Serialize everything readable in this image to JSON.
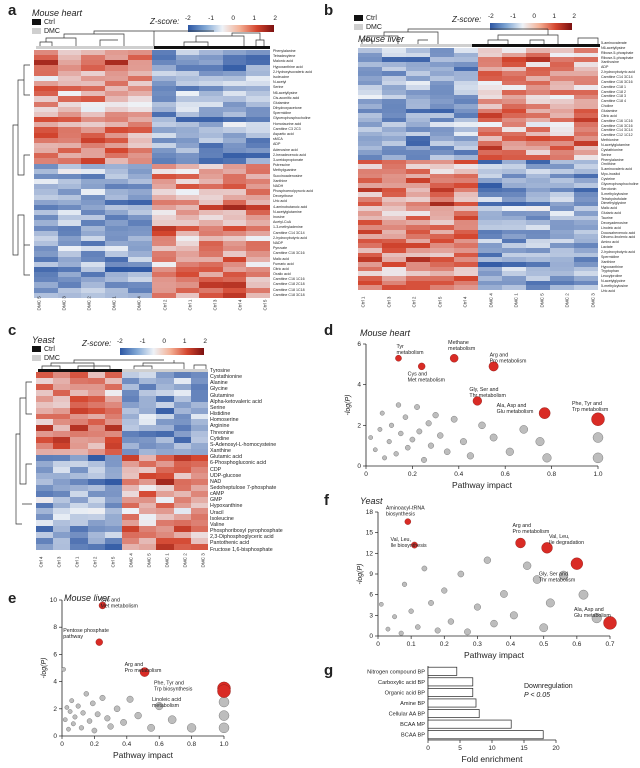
{
  "panels": {
    "a": {
      "label": "a",
      "title": "Mouse heart"
    },
    "b": {
      "label": "b",
      "title": "Mouse liver"
    },
    "c": {
      "label": "c",
      "title": "Yeast"
    },
    "d": {
      "label": "d",
      "title": "Mouse heart"
    },
    "e": {
      "label": "e",
      "title": "Mouse liver"
    },
    "f": {
      "label": "f",
      "title": "Yeast"
    },
    "g": {
      "label": "g"
    }
  },
  "legend": {
    "ctrl": "Ctrl",
    "dmc": "DMC",
    "ctrl_color": "#111111",
    "dmc_color": "#cfcfcf"
  },
  "zscore": {
    "label": "Z-score:",
    "ticks": [
      "-2",
      "-1",
      "0",
      "1",
      "2"
    ]
  },
  "heatmap_colors": {
    "low": "#2c56a3",
    "mid": "#eef2f7",
    "high": "#d4462f",
    "max": "#7b1010"
  },
  "heatmap_a": {
    "columns": [
      "DMC 5",
      "DMC 3",
      "DMC 2",
      "DMC 1",
      "DMC 4",
      "Ctrl 2",
      "Ctrl 1",
      "Ctrl 3",
      "Ctrl 4",
      "Ctrl 5"
    ],
    "rows": [
      "Phenylalanine",
      "Tetradecylene",
      "Malonic acid",
      "Hypoxanthine acid",
      "2-Hydroxyisovaleric acid",
      "Isoleucine",
      "N-acetyl",
      "Serine",
      "N6-acetyllysine",
      "Cis-aconitic acid",
      "Glutamine",
      "Dihydroxyacetone",
      "Spermidine",
      "Glycerophosphocholine",
      "Homotaurine acid",
      "Carnitine C3 2C3",
      "Aspartic acid",
      "sMCA",
      "ADP",
      "Adenosine acid",
      "2-hexadecenoic acid",
      "3-ureidopropionate",
      "Putrescine",
      "Methylguanine",
      "Succinoadenosine",
      "Xanthine",
      "NADH",
      "Phosphoenolpyruvic acid",
      "Deoxyribose",
      "Uric acid",
      "4-aminobutanoic acid",
      "N-acetylglutamine",
      "Inosine",
      "Acetyl-CoA",
      "1-3-methyladenine",
      "Carnitine C14 3C14",
      "2-hydroxybutyric acid",
      "NADP",
      "Pyruvate",
      "Carnitine C16 3C16",
      "Malic acid",
      "Fumaric acid",
      "Citric acid",
      "Oxalic acid",
      "Carnitine C16 1C16",
      "Carnitine C18 2C18",
      "Carnitine C18 1C18",
      "Carnitine C18 3C18"
    ]
  },
  "heatmap_b": {
    "columns": [
      "Ctrl 1",
      "Ctrl 3",
      "Ctrl 2",
      "Ctrl 5",
      "Ctrl 4",
      "DMC 4",
      "DMC 1",
      "DMC 5",
      "DMC 2",
      "DMC 3"
    ],
    "rows": [
      "5-aminovalerate",
      "N6-acetyllysine",
      "Ribose-5-phosphate",
      "Ribose-5-phosphate",
      "Xanthosine",
      "ADP",
      "2-hydroxybutyric acid",
      "Carnitine C14 3C14",
      "Carnitine C16 3C16",
      "Carnitine C18 1",
      "Carnitine C18 2",
      "Carnitine C18 3",
      "Carnitine C18 4",
      "Choline",
      "Glutamine",
      "Citric acid",
      "Carnitine C16 1C16",
      "Carnitine C16 3C16",
      "Carnitine C14 3C14",
      "Carnitine C12 1C12",
      "Methionine",
      "N-acetylglutamine",
      "Cystathionine",
      "Serine",
      "Phenylalanine",
      "Ornithine",
      "5-aminovaleric acid",
      "Myo-inositol",
      "Cysteine",
      "Glycerophosphocholine",
      "Serotonin",
      "5-methylcytosine",
      "Tetrahydrofolate",
      "Dimethylglycine",
      "Malic acid",
      "Glutaric acid",
      "Taurine",
      "Deoxyadenosine",
      "Linoleic acid",
      "Docosahexenoic acid",
      "Dihomo-linolenic acid",
      "Amino acid",
      "Lactate",
      "2-hydroxybutyric acid",
      "Spermidine",
      "Xanthine",
      "Hypoxanthine",
      "Tryptophan",
      "Leucylproline",
      "N-acetylglycine",
      "5-methylcytosine",
      "Uric acid"
    ]
  },
  "heatmap_c": {
    "columns": [
      "Ctrl 4",
      "Ctrl 3",
      "Ctrl 1",
      "Ctrl 2",
      "Ctrl 5",
      "DMC 4",
      "DMC 5",
      "DMC 1",
      "DMC 2",
      "DMC 3"
    ],
    "rows": [
      "Tyrosine",
      "Cystathionine",
      "Alanine",
      "Glycine",
      "Glutamine",
      "Alpha-ketovaleric acid",
      "Serine",
      "Histidine",
      "Homoserine",
      "Arginine",
      "Threonine",
      "Cytidine",
      "S-Adenosyl-L-homocysteine",
      "Xanthine",
      "Glutamic acid",
      "6-Phosphogluconic acid",
      "CDP",
      "UDP-glucose",
      "NAD",
      "Sedoheptulose 7-phosphate",
      "cAMP",
      "GMP",
      "Hypoxanthine",
      "Uracil",
      "Isoleucine",
      "Valine",
      "Phosphoribosyl pyrophosphate",
      "2,3-Diphosphoglyceric acid",
      "Pantothenic acid",
      "Fructose 1,6-bisphosphate"
    ]
  },
  "chart_data": [
    {
      "type": "scatter",
      "panel": "d",
      "title": "Mouse heart",
      "xlabel": "Pathway impact",
      "ylabel": "-log(P)",
      "xlim": [
        0,
        1.0
      ],
      "ylim": [
        0,
        6
      ],
      "xticks": [
        "0",
        "0.2",
        "0.4",
        "0.6",
        "0.8",
        "1.0"
      ],
      "yticks": [
        "0",
        "2",
        "4",
        "6"
      ],
      "highlighted": [
        {
          "label": "Tyr metabolism",
          "x": 0.14,
          "y": 5.3
        },
        {
          "label": "Methane metabolism",
          "x": 0.38,
          "y": 5.3
        },
        {
          "label": "Cys and Met metabolism",
          "x": 0.24,
          "y": 4.9
        },
        {
          "label": "Arg and Pro metabolism",
          "x": 0.55,
          "y": 4.9
        },
        {
          "label": "Gly, Ser and Thr metabolism",
          "x": 0.48,
          "y": 3.2
        },
        {
          "label": "Ala, Asp and Glu metabolism",
          "x": 0.77,
          "y": 2.6
        },
        {
          "label": "Phe, Tyr and Trp metabolism",
          "x": 1.0,
          "y": 2.3
        }
      ],
      "others": [
        [
          0.02,
          1.4
        ],
        [
          0.04,
          0.8
        ],
        [
          0.06,
          1.8
        ],
        [
          0.07,
          2.6
        ],
        [
          0.08,
          0.4
        ],
        [
          0.1,
          1.2
        ],
        [
          0.11,
          2.0
        ],
        [
          0.13,
          0.6
        ],
        [
          0.14,
          3.0
        ],
        [
          0.15,
          1.6
        ],
        [
          0.17,
          2.4
        ],
        [
          0.18,
          0.9
        ],
        [
          0.2,
          1.3
        ],
        [
          0.22,
          2.9
        ],
        [
          0.23,
          1.7
        ],
        [
          0.25,
          0.3
        ],
        [
          0.27,
          2.1
        ],
        [
          0.28,
          1.0
        ],
        [
          0.3,
          2.5
        ],
        [
          0.32,
          1.5
        ],
        [
          0.35,
          0.7
        ],
        [
          0.38,
          2.3
        ],
        [
          0.42,
          1.2
        ],
        [
          0.45,
          0.5
        ],
        [
          0.5,
          2.0
        ],
        [
          0.55,
          1.4
        ],
        [
          0.62,
          0.7
        ],
        [
          0.68,
          1.8
        ],
        [
          0.75,
          1.2
        ],
        [
          0.78,
          0.4
        ],
        [
          1.0,
          1.4
        ],
        [
          1.0,
          0.4
        ]
      ]
    },
    {
      "type": "scatter",
      "panel": "e",
      "title": "Mouse liver",
      "xlabel": "Pathway impact",
      "ylabel": "-log(P)",
      "xlim": [
        0,
        1.0
      ],
      "ylim": [
        0,
        10
      ],
      "xticks": [
        "0",
        "0.2",
        "0.4",
        "0.6",
        "0.8",
        "1.0"
      ],
      "yticks": [
        "0",
        "2",
        "4",
        "6",
        "8",
        "10"
      ],
      "highlighted": [
        {
          "label": "Cys and Met metabolism",
          "x": 0.25,
          "y": 9.6
        },
        {
          "label": "Pentose phosphate pathway",
          "x": 0.23,
          "y": 6.9
        },
        {
          "label": "Arg and Pro metabolism",
          "x": 0.51,
          "y": 4.7
        },
        {
          "label": "Phe, Tyr and Trp biosynthesis",
          "x": 1.0,
          "y": 3.5
        },
        {
          "label": "Linoleic acid metabolism",
          "x": 1.0,
          "y": 3.3
        }
      ],
      "others": [
        [
          0.01,
          4.9
        ],
        [
          0.02,
          1.2
        ],
        [
          0.03,
          2.1
        ],
        [
          0.04,
          0.5
        ],
        [
          0.05,
          1.8
        ],
        [
          0.06,
          2.6
        ],
        [
          0.07,
          0.9
        ],
        [
          0.08,
          1.4
        ],
        [
          0.1,
          2.2
        ],
        [
          0.12,
          0.6
        ],
        [
          0.13,
          1.7
        ],
        [
          0.15,
          3.1
        ],
        [
          0.17,
          1.1
        ],
        [
          0.19,
          2.4
        ],
        [
          0.2,
          0.4
        ],
        [
          0.22,
          1.6
        ],
        [
          0.25,
          2.8
        ],
        [
          0.28,
          1.3
        ],
        [
          0.3,
          0.7
        ],
        [
          0.34,
          2.0
        ],
        [
          0.38,
          1.0
        ],
        [
          0.42,
          2.7
        ],
        [
          0.47,
          1.5
        ],
        [
          0.55,
          0.6
        ],
        [
          0.6,
          2.2
        ],
        [
          0.68,
          1.2
        ],
        [
          0.8,
          0.6
        ],
        [
          1.0,
          2.5
        ],
        [
          1.0,
          1.5
        ],
        [
          1.0,
          0.6
        ]
      ]
    },
    {
      "type": "scatter",
      "panel": "f",
      "title": "Yeast",
      "xlabel": "Pathway impact",
      "ylabel": "-log(P)",
      "xlim": [
        0,
        0.7
      ],
      "ylim": [
        0,
        18
      ],
      "xticks": [
        "0",
        "0.1",
        "0.2",
        "0.3",
        "0.4",
        "0.5",
        "0.6",
        "0.7"
      ],
      "yticks": [
        "0",
        "3",
        "6",
        "9",
        "12",
        "15",
        "18"
      ],
      "highlighted": [
        {
          "label": "Aminoacyl-tRNA biosynthesis",
          "x": 0.09,
          "y": 16.6
        },
        {
          "label": "Val, Leu, Ile biosynthesis",
          "x": 0.11,
          "y": 13.2
        },
        {
          "label": "Arg and Pro metabolism",
          "x": 0.43,
          "y": 13.5
        },
        {
          "label": "Val, Leu, Ile degradation",
          "x": 0.51,
          "y": 12.8
        },
        {
          "label": "Gly, Ser and Thr metabolism",
          "x": 0.6,
          "y": 10.5
        },
        {
          "label": "Ala, Asp and Glu metabolism",
          "x": 0.7,
          "y": 1.9
        }
      ],
      "others": [
        [
          0.01,
          4.6
        ],
        [
          0.03,
          1.0
        ],
        [
          0.05,
          2.8
        ],
        [
          0.07,
          0.4
        ],
        [
          0.08,
          7.5
        ],
        [
          0.1,
          3.6
        ],
        [
          0.12,
          1.3
        ],
        [
          0.14,
          9.8
        ],
        [
          0.16,
          4.8
        ],
        [
          0.18,
          0.8
        ],
        [
          0.2,
          6.6
        ],
        [
          0.22,
          2.1
        ],
        [
          0.25,
          9.0
        ],
        [
          0.27,
          0.6
        ],
        [
          0.3,
          4.2
        ],
        [
          0.33,
          11.0
        ],
        [
          0.35,
          1.8
        ],
        [
          0.38,
          6.1
        ],
        [
          0.41,
          3.0
        ],
        [
          0.45,
          10.2
        ],
        [
          0.48,
          8.2
        ],
        [
          0.5,
          1.2
        ],
        [
          0.52,
          4.8
        ],
        [
          0.56,
          8.8
        ],
        [
          0.62,
          6.0
        ],
        [
          0.66,
          2.6
        ]
      ]
    },
    {
      "type": "bar",
      "panel": "g",
      "orientation": "horizontal",
      "xlabel": "Fold enrichment",
      "xlim": [
        0,
        20
      ],
      "xticks": [
        "0",
        "5",
        "10",
        "15",
        "20"
      ],
      "categories": [
        "Nitrogen compound BP",
        "Carboxylic acid BP",
        "Organic acid BP",
        "Amine BP",
        "Cellular AA BP",
        "BCAA MP",
        "BCAA BP"
      ],
      "values": [
        4.5,
        7.0,
        7.0,
        7.5,
        8.0,
        13.0,
        18.0
      ],
      "annotation": [
        "Downregulation",
        "P < 0.05"
      ]
    }
  ]
}
